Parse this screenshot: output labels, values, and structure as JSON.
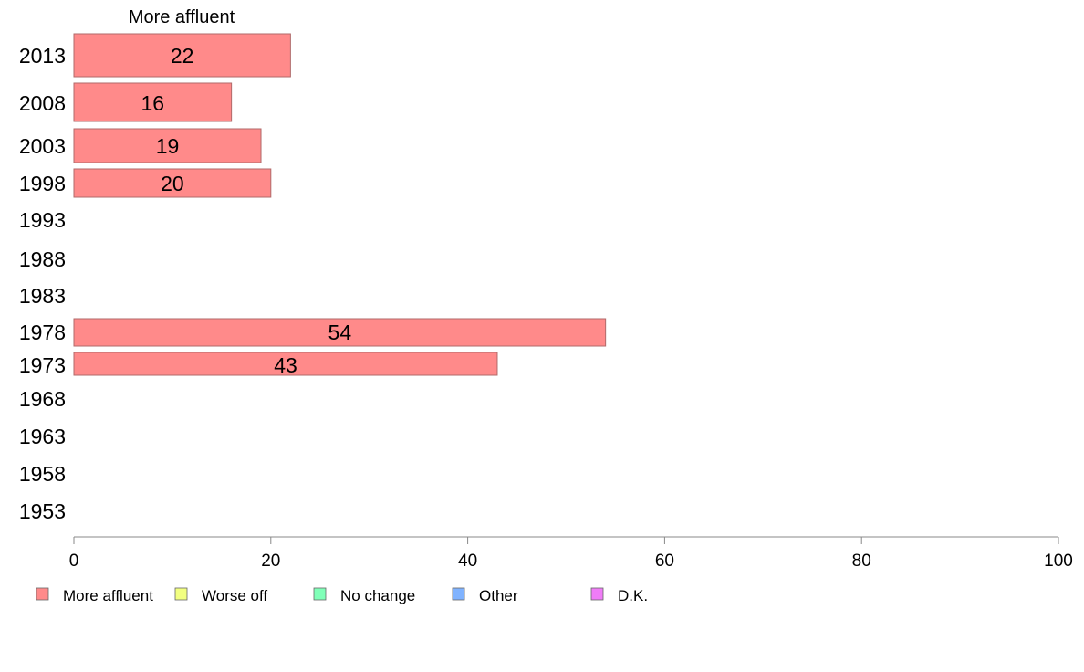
{
  "chart_data": {
    "type": "bar",
    "orientation": "horizontal",
    "title": "More affluent",
    "categories": [
      "2013",
      "2008",
      "2003",
      "1998",
      "1993",
      "1988",
      "1983",
      "1978",
      "1973",
      "1968",
      "1963",
      "1958",
      "1953"
    ],
    "series": [
      {
        "name": "More affluent",
        "color": "#ff8a8a",
        "values": [
          22,
          16,
          19,
          20,
          null,
          null,
          null,
          54,
          43,
          null,
          null,
          null,
          null
        ]
      }
    ],
    "data_labels": [
      "22",
      "16",
      "19",
      "20",
      "",
      "",
      "",
      "54",
      "43",
      "",
      "",
      "",
      ""
    ],
    "xlim": [
      0,
      100
    ],
    "x_ticks": [
      0,
      20,
      40,
      60,
      80,
      100
    ],
    "grid": false,
    "legend": {
      "placement": "bottom",
      "entries": [
        {
          "label": "More affluent",
          "color": "#ff8a8a"
        },
        {
          "label": "Worse off",
          "color": "#f2ff80"
        },
        {
          "label": "No change",
          "color": "#80ffb8"
        },
        {
          "label": "Other",
          "color": "#80b3ff"
        },
        {
          "label": "D.K.",
          "color": "#f07cf7"
        }
      ]
    }
  }
}
